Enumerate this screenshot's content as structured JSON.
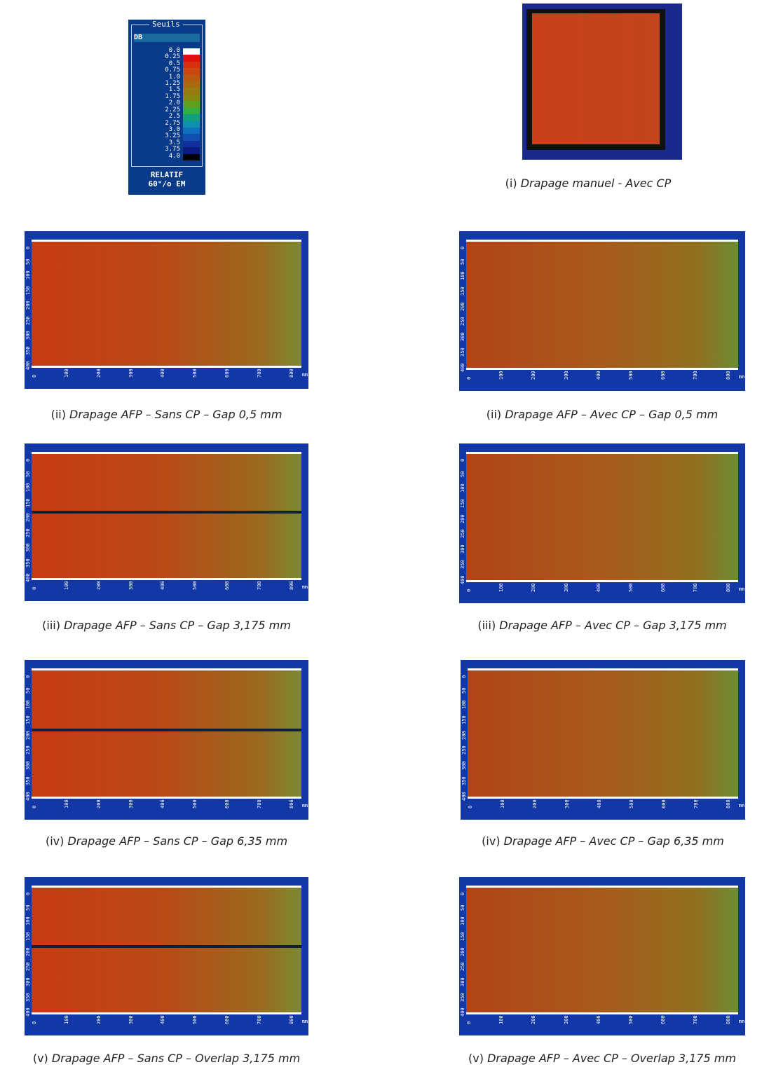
{
  "legend": {
    "title": "Seuils",
    "unit": "DB",
    "values": [
      "0.0",
      "0.25",
      "0.5",
      "0.75",
      "1.0",
      "1.25",
      "1.5",
      "1.75",
      "2.0",
      "2.25",
      "2.5",
      "2.75",
      "3.0",
      "3.25",
      "3.5",
      "3.75",
      "4.0"
    ],
    "colors": [
      "#ffffff",
      "#e01010",
      "#d83010",
      "#c84810",
      "#b85a10",
      "#a86a10",
      "#987a10",
      "#888810",
      "#60a020",
      "#30b040",
      "#10a080",
      "#1090b0",
      "#1070c0",
      "#1050b0",
      "#1030a0",
      "#0a1a80",
      "#000000"
    ],
    "footer": [
      "RELATIF",
      "60°/o EM"
    ]
  },
  "scan_axes": {
    "x": [
      "0",
      "100",
      "200",
      "300",
      "400",
      "500",
      "600",
      "700",
      "800"
    ],
    "x_unit": "mm",
    "y": [
      "0",
      "50",
      "100",
      "150",
      "200",
      "250",
      "300",
      "350",
      "400"
    ]
  },
  "figures": [
    {
      "label": "(i)",
      "text": "Drapage manuel - Avec CP"
    },
    {
      "label": "(ii)",
      "text": "Drapage AFP – Sans CP – Gap 0,5 mm"
    },
    {
      "label": "(ii)",
      "text": "Drapage AFP – Avec CP – Gap 0,5 mm"
    },
    {
      "label": "(iii)",
      "text": "Drapage AFP – Sans CP – Gap 3,175 mm"
    },
    {
      "label": "(iii)",
      "text": "Drapage AFP – Avec CP – Gap 3,175 mm"
    },
    {
      "label": "(iv)",
      "text": "Drapage AFP – Sans CP – Gap 6,35 mm"
    },
    {
      "label": "(iv)",
      "text": "Drapage AFP – Avec CP – Gap 6,35 mm"
    },
    {
      "label": "(v)",
      "text": "Drapage AFP – Sans CP – Overlap 3,175 mm"
    },
    {
      "label": "(v)",
      "text": "Drapage AFP – Avec CP – Overlap 3,175 mm"
    }
  ]
}
